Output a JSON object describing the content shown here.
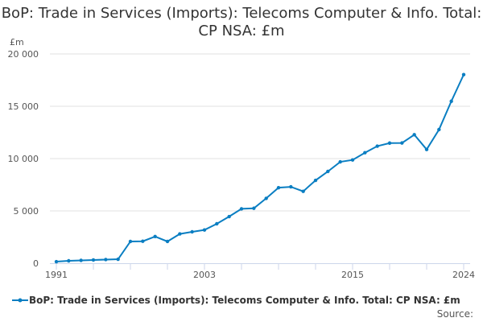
{
  "title": "BoP: Trade in Services (Imports): Telecoms Computer & Info. Total: CP NSA: £m",
  "source_label": "Source:",
  "chart_data": {
    "type": "line",
    "title": "BoP: Trade in Services (Imports): Telecoms Computer & Info. Total: CP NSA: £m",
    "ylabel": "£m",
    "xlabel": "",
    "ylim": [
      0,
      20000
    ],
    "yticks": [
      0,
      5000,
      10000,
      15000,
      20000
    ],
    "ytick_labels": [
      "0",
      "5 000",
      "10 000",
      "15 000",
      "20 000"
    ],
    "xtick_labels": [
      "1991",
      "2003",
      "2015",
      "2024"
    ],
    "grid": true,
    "legend": "bottom",
    "color": "#0a7ec2",
    "series": [
      {
        "name": "BoP: Trade in Services (Imports): Telecoms Computer & Info. Total: CP NSA: £m",
        "x": [
          1991,
          1992,
          1993,
          1994,
          1995,
          1996,
          1997,
          1998,
          1999,
          2000,
          2001,
          2002,
          2003,
          2004,
          2005,
          2006,
          2007,
          2008,
          2009,
          2010,
          2011,
          2012,
          2013,
          2014,
          2015,
          2016,
          2017,
          2018,
          2019,
          2020,
          2021,
          2022,
          2023,
          2024
        ],
        "values": [
          150,
          230,
          270,
          310,
          350,
          380,
          2080,
          2100,
          2550,
          2080,
          2800,
          3000,
          3180,
          3770,
          4460,
          5200,
          5250,
          6200,
          7220,
          7300,
          6870,
          7920,
          8770,
          9690,
          9870,
          10560,
          11190,
          11480,
          11490,
          12280,
          10870,
          12770,
          15480,
          18020
        ]
      }
    ]
  }
}
